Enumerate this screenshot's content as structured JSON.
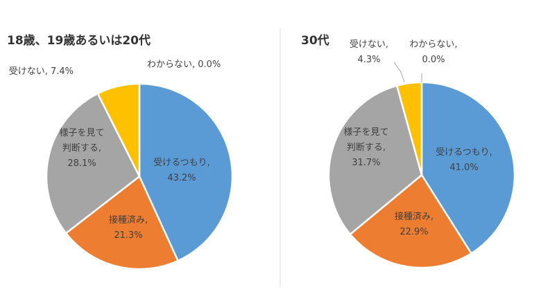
{
  "chart_data": [
    {
      "type": "pie",
      "title": "18歳、19歳あるいは20代",
      "slices": [
        {
          "label_lines": [
            "受けるつもり,",
            "43.2%"
          ],
          "value": 43.2,
          "color": "#5b9bd5"
        },
        {
          "label_lines": [
            "接種済み,",
            "21.3%"
          ],
          "value": 21.3,
          "color": "#ed7d31"
        },
        {
          "label_lines": [
            "様子を見て",
            "判断する,",
            "28.1%"
          ],
          "value": 28.1,
          "color": "#a5a5a5"
        },
        {
          "label_lines": [
            "受けない, 7.4%"
          ],
          "value": 7.4,
          "color": "#ffc000"
        },
        {
          "label_lines": [
            "わからない, 0.0%"
          ],
          "value": 0.0,
          "color": "#4472c4"
        }
      ]
    },
    {
      "type": "pie",
      "title": "30代",
      "slices": [
        {
          "label_lines": [
            "受けるつもり,",
            "41.0%"
          ],
          "value": 41.0,
          "color": "#5b9bd5"
        },
        {
          "label_lines": [
            "接種済み,",
            "22.9%"
          ],
          "value": 22.9,
          "color": "#ed7d31"
        },
        {
          "label_lines": [
            "様子を見て",
            "判断する,",
            "31.7%"
          ],
          "value": 31.7,
          "color": "#a5a5a5"
        },
        {
          "label_lines": [
            "受けない,",
            "4.3%"
          ],
          "value": 4.3,
          "color": "#ffc000"
        },
        {
          "label_lines": [
            "わからない,",
            "0.0%"
          ],
          "value": 0.0,
          "color": "#4472c4"
        }
      ]
    }
  ]
}
